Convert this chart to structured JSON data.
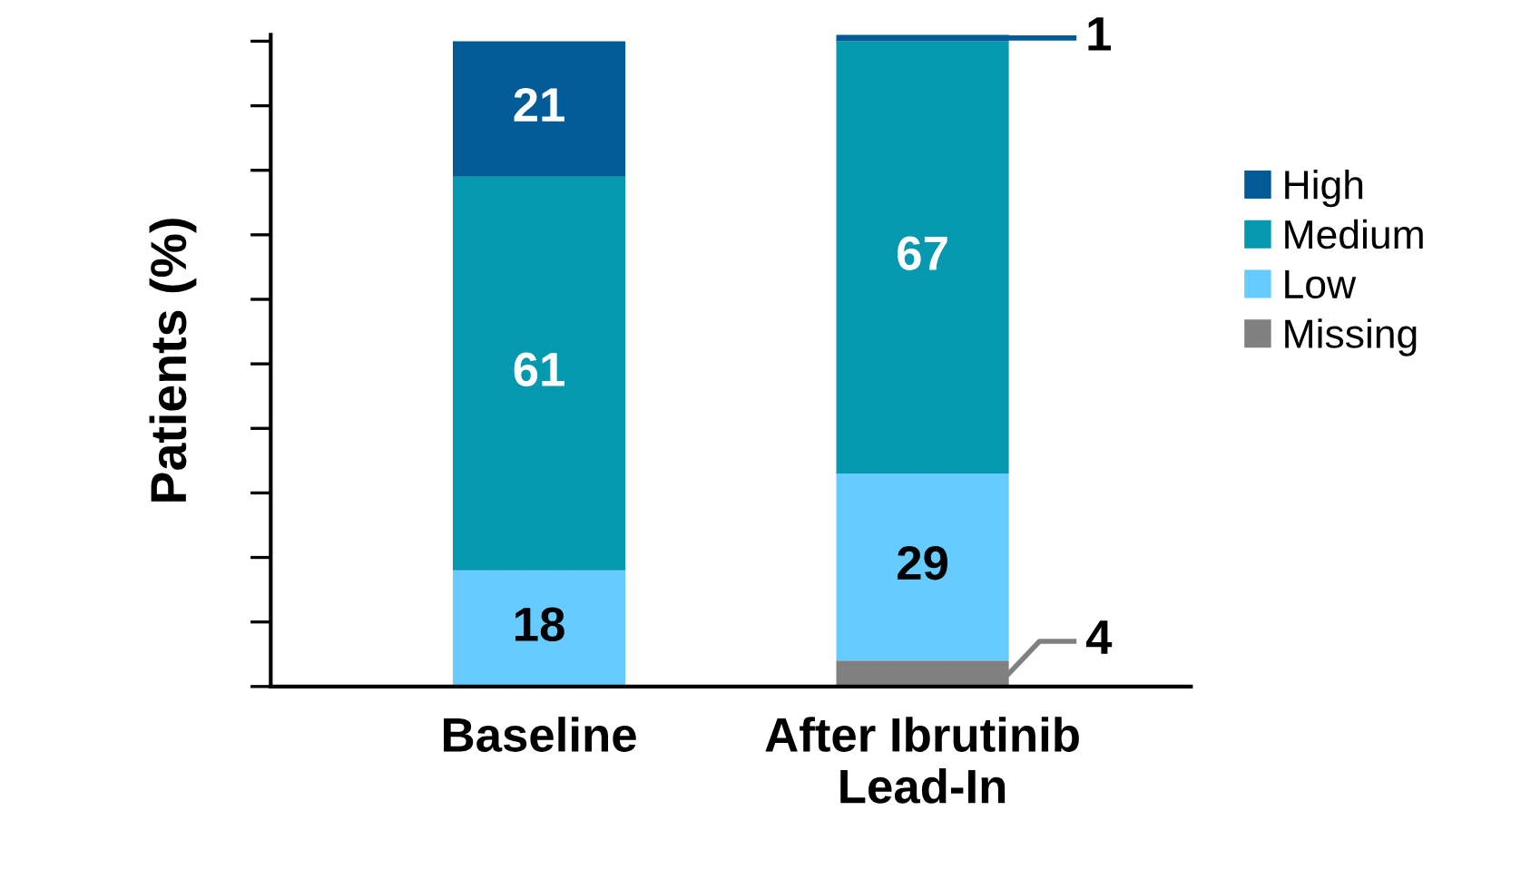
{
  "chart_data": {
    "type": "bar",
    "stacked": true,
    "ylabel": "Patients (%)",
    "categories": [
      "Baseline",
      "After Ibrutinib\nLead-In"
    ],
    "series": [
      {
        "name": "Missing",
        "color": "#808080",
        "values": [
          null,
          4
        ]
      },
      {
        "name": "Low",
        "color": "#66ccff",
        "values": [
          18,
          29
        ]
      },
      {
        "name": "Medium",
        "color": "#0499ae",
        "values": [
          61,
          67
        ]
      },
      {
        "name": "High",
        "color": "#005b96",
        "values": [
          21,
          1
        ]
      }
    ],
    "ylim": [
      0,
      101
    ],
    "yticks": [
      {
        "value": 0,
        "label": null
      },
      {
        "value": 10,
        "label": null
      },
      {
        "value": 20,
        "label": null
      },
      {
        "value": 30,
        "label": null
      },
      {
        "value": 40,
        "label": null
      },
      {
        "value": 50,
        "label": null
      },
      {
        "value": 60,
        "label": null
      },
      {
        "value": 70,
        "label": null
      },
      {
        "value": 80,
        "label": null
      },
      {
        "value": 90,
        "label": null
      },
      {
        "value": 100,
        "label": null
      }
    ],
    "data_labels": true,
    "legend": "right",
    "grid": false
  }
}
